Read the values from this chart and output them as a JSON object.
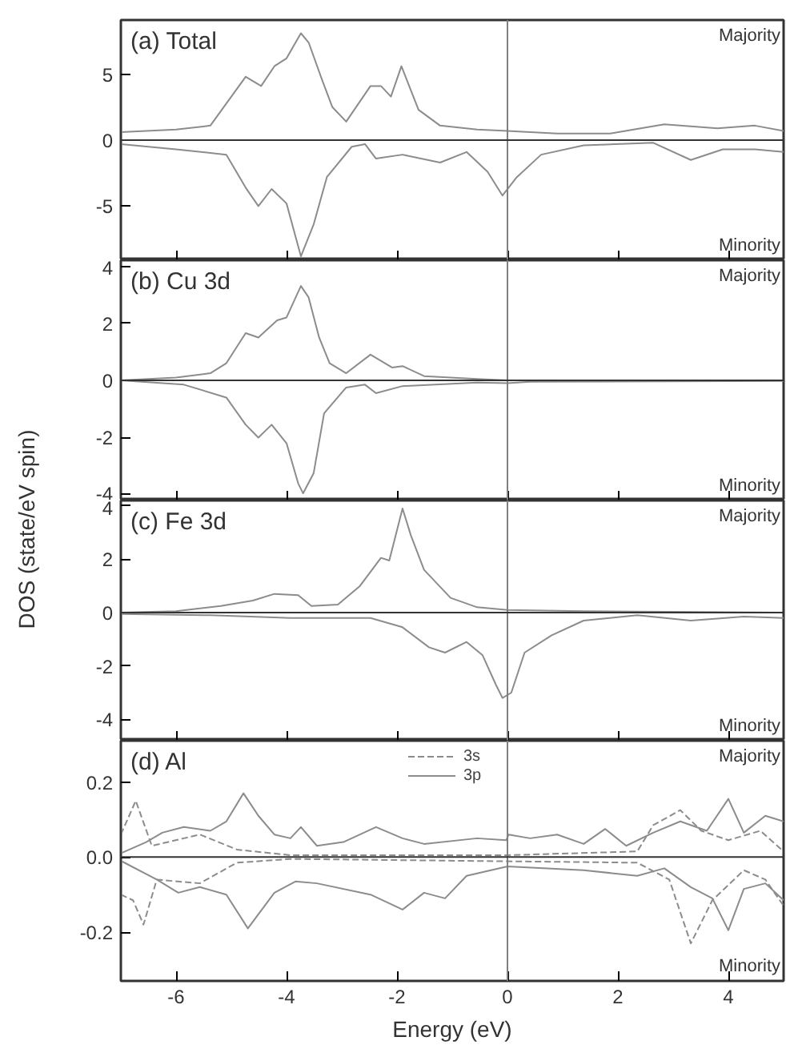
{
  "chart_data": [
    {
      "type": "line",
      "title": "(a) Total",
      "tick_labels": "y",
      "xlim": [
        -7,
        5
      ],
      "xticks": [
        -6,
        -4,
        -2,
        0,
        2,
        4
      ],
      "ylim": [
        -9.1,
        9.1
      ],
      "yticks": [
        -5,
        0,
        5
      ],
      "grid": false,
      "marker": "none",
      "line_style": "solid",
      "ref_lines": [
        {
          "axis": "x",
          "value": 0,
          "color": "#7f7f7f"
        },
        {
          "axis": "y",
          "value": 0,
          "color": "#333333"
        }
      ],
      "annotations": [
        "Majority",
        "Minority"
      ],
      "series": [
        {
          "color": "#8c8c8c",
          "x": [
            -7.0,
            -6.0,
            -5.38,
            -5.0,
            -4.74,
            -4.46,
            -4.22,
            -4.0,
            -3.74,
            -3.6,
            -3.36,
            -3.17,
            -2.92,
            -2.48,
            -2.29,
            -2.11,
            -1.92,
            -1.61,
            -1.22,
            -0.55,
            0,
            0.9,
            1.86,
            2.84,
            3.8,
            4.48,
            5.0
          ],
          "values": [
            0.6,
            0.8,
            1.1,
            3.3,
            4.8,
            4.1,
            5.6,
            6.2,
            8.1,
            7.4,
            4.6,
            2.5,
            1.4,
            4.1,
            4.1,
            3.3,
            5.6,
            2.3,
            1.1,
            0.8,
            0.7,
            0.5,
            0.5,
            1.2,
            0.9,
            1.1,
            0.7
          ]
        },
        {
          "color": "#8c8c8c",
          "x": [
            -7.0,
            -6.0,
            -5.09,
            -4.74,
            -4.51,
            -4.27,
            -4.0,
            -3.74,
            -3.51,
            -3.27,
            -2.82,
            -2.58,
            -2.38,
            -1.9,
            -1.22,
            -0.74,
            -0.36,
            -0.09,
            0.17,
            0.61,
            1.38,
            2.64,
            3.32,
            3.9,
            4.48,
            5.0
          ],
          "values": [
            -0.3,
            -0.7,
            -1.1,
            -3.6,
            -5.0,
            -3.7,
            -4.8,
            -8.8,
            -6.4,
            -2.8,
            -0.5,
            -0.3,
            -1.4,
            -1.1,
            -1.7,
            -0.9,
            -2.4,
            -4.2,
            -2.8,
            -1.1,
            -0.4,
            -0.2,
            -1.5,
            -0.7,
            -0.7,
            -0.9
          ]
        }
      ]
    },
    {
      "type": "line",
      "title": "(b) Cu 3d",
      "ylabel": "DOS (state/eV spin)",
      "tick_labels": "y",
      "xlim": [
        -7,
        5
      ],
      "xticks": [
        -6,
        -4,
        -2,
        0,
        2,
        4
      ],
      "ylim": [
        -4.2,
        4.2
      ],
      "yticks": [
        -4,
        -2,
        0,
        2,
        4
      ],
      "grid": false,
      "marker": "none",
      "line_style": "solid",
      "ref_lines": [
        {
          "axis": "x",
          "value": 0,
          "color": "#7f7f7f"
        },
        {
          "axis": "y",
          "value": 0,
          "color": "#333333"
        }
      ],
      "annotations": [
        "Majority",
        "Minority"
      ],
      "series": [
        {
          "color": "#8c8c8c",
          "x": [
            -7.0,
            -6.0,
            -5.38,
            -5.09,
            -4.74,
            -4.51,
            -4.17,
            -4.0,
            -3.74,
            -3.6,
            -3.41,
            -3.22,
            -2.92,
            -2.48,
            -2.09,
            -1.9,
            -1.51,
            -0.55,
            0,
            5.0
          ],
          "values": [
            0,
            0.1,
            0.25,
            0.6,
            1.65,
            1.5,
            2.1,
            2.2,
            3.3,
            2.9,
            1.5,
            0.6,
            0.25,
            0.9,
            0.45,
            0.5,
            0.15,
            0.05,
            0,
            0
          ]
        },
        {
          "color": "#8c8c8c",
          "x": [
            -7.0,
            -5.86,
            -5.09,
            -4.74,
            -4.51,
            -4.27,
            -4.0,
            -3.79,
            -3.7,
            -3.51,
            -3.32,
            -2.92,
            -2.58,
            -2.38,
            -1.9,
            -0.55,
            0,
            0.41,
            5.0
          ],
          "values": [
            0,
            -0.15,
            -0.6,
            -1.55,
            -2.0,
            -1.55,
            -2.2,
            -3.6,
            -3.95,
            -3.25,
            -1.15,
            -0.25,
            -0.15,
            -0.45,
            -0.2,
            -0.08,
            -0.1,
            -0.05,
            -0.02
          ]
        }
      ]
    },
    {
      "type": "line",
      "title": "(c) Fe 3d",
      "tick_labels": "y",
      "xlim": [
        -7,
        5
      ],
      "xticks": [
        -6,
        -4,
        -2,
        0,
        2,
        4
      ],
      "ylim": [
        -4.8,
        4.2
      ],
      "yticks": [
        -4,
        -2,
        0,
        2,
        4
      ],
      "grid": false,
      "marker": "none",
      "line_style": "solid",
      "ref_lines": [
        {
          "axis": "x",
          "value": 0,
          "color": "#7f7f7f"
        },
        {
          "axis": "y",
          "value": 0,
          "color": "#333333"
        }
      ],
      "annotations": [
        "Majority",
        "Minority"
      ],
      "series": [
        {
          "color": "#8c8c8c",
          "x": [
            -7.0,
            -6.0,
            -5.19,
            -4.61,
            -4.22,
            -3.79,
            -3.55,
            -3.07,
            -2.67,
            -2.29,
            -2.14,
            -1.9,
            -1.75,
            -1.51,
            -1.03,
            -0.55,
            0,
            1.38,
            5.0
          ],
          "values": [
            0,
            0.05,
            0.25,
            0.45,
            0.7,
            0.65,
            0.25,
            0.3,
            1.0,
            2.05,
            1.95,
            3.9,
            2.9,
            1.6,
            0.55,
            0.2,
            0.1,
            0.05,
            0
          ]
        },
        {
          "color": "#8c8c8c",
          "x": [
            -7.0,
            -5.38,
            -3.93,
            -2.48,
            -1.9,
            -1.42,
            -1.13,
            -0.74,
            -0.45,
            -0.21,
            -0.09,
            0.07,
            0.31,
            0.8,
            1.38,
            2.35,
            3.32,
            4.28,
            5.0
          ],
          "values": [
            -0.05,
            -0.1,
            -0.2,
            -0.2,
            -0.55,
            -1.3,
            -1.5,
            -1.1,
            -1.6,
            -2.7,
            -3.2,
            -3.0,
            -1.5,
            -0.85,
            -0.3,
            -0.1,
            -0.3,
            -0.15,
            -0.2
          ]
        }
      ]
    },
    {
      "type": "line",
      "title": "(d) Al",
      "xlabel": "Energy (eV)",
      "xlim": [
        -7,
        5
      ],
      "xticks": [
        -6,
        -4,
        -2,
        0,
        2,
        4
      ],
      "ylim": [
        -0.33,
        0.31
      ],
      "yticks": [
        -0.2,
        {
          "value": 0,
          "label": "0.0"
        },
        0.2
      ],
      "grid": false,
      "marker": "none",
      "legend": "top",
      "ref_lines": [
        {
          "axis": "x",
          "value": 0,
          "color": "#7f7f7f"
        },
        {
          "axis": "y",
          "value": 0,
          "color": "#333333"
        }
      ],
      "annotations": [
        "Majority",
        "Minority"
      ],
      "series": [
        {
          "name": "3s",
          "line_style": "dashed",
          "color": "#8c8c8c",
          "x": [
            -7.0,
            -6.73,
            -6.44,
            -5.86,
            -5.57,
            -4.9,
            -3.93,
            0,
            2.35,
            2.64,
            3.13,
            3.51,
            4.0,
            4.58,
            5.0
          ],
          "values": [
            0.06,
            0.15,
            0.03,
            0.05,
            0.06,
            0.02,
            0.005,
            0.005,
            0.015,
            0.085,
            0.125,
            0.07,
            0.045,
            0.07,
            0.015
          ]
        },
        {
          "line_style": "dashed",
          "color": "#8c8c8c",
          "x": [
            -7.0,
            -6.78,
            -6.59,
            -6.35,
            -5.57,
            -4.9,
            -3.93,
            2.35,
            2.93,
            3.32,
            3.71,
            4.28,
            4.67,
            5.0
          ],
          "values": [
            -0.1,
            -0.115,
            -0.18,
            -0.06,
            -0.07,
            -0.015,
            -0.005,
            -0.015,
            -0.06,
            -0.23,
            -0.115,
            -0.035,
            -0.06,
            -0.13
          ]
        },
        {
          "name": "3p",
          "line_style": "solid",
          "color": "#8c8c8c",
          "x": [
            -7.0,
            -6.54,
            -6.25,
            -5.86,
            -5.38,
            -5.09,
            -4.78,
            -4.51,
            -4.22,
            -3.93,
            -3.74,
            -3.45,
            -2.97,
            -2.38,
            -1.9,
            -1.51,
            -0.55,
            -0.02,
            0.02,
            0.41,
            0.9,
            1.38,
            1.77,
            2.15,
            2.64,
            3.13,
            3.61,
            4.0,
            4.28,
            4.67,
            5.0
          ],
          "values": [
            0.01,
            0.04,
            0.065,
            0.08,
            0.07,
            0.095,
            0.17,
            0.11,
            0.06,
            0.05,
            0.08,
            0.03,
            0.04,
            0.08,
            0.05,
            0.035,
            0.05,
            0.045,
            0.06,
            0.05,
            0.06,
            0.035,
            0.075,
            0.03,
            0.065,
            0.095,
            0.07,
            0.155,
            0.065,
            0.11,
            0.095
          ]
        },
        {
          "line_style": "solid",
          "color": "#8c8c8c",
          "x": [
            -7.0,
            -6.35,
            -5.96,
            -5.57,
            -5.09,
            -4.7,
            -4.22,
            -3.84,
            -3.45,
            -2.48,
            -1.9,
            -1.51,
            -1.13,
            -0.74,
            0,
            1.38,
            2.35,
            2.84,
            3.32,
            3.71,
            4.0,
            4.28,
            4.67,
            5.0
          ],
          "values": [
            -0.01,
            -0.06,
            -0.095,
            -0.08,
            -0.1,
            -0.19,
            -0.095,
            -0.065,
            -0.07,
            -0.1,
            -0.14,
            -0.095,
            -0.11,
            -0.05,
            -0.025,
            -0.035,
            -0.05,
            -0.03,
            -0.08,
            -0.11,
            -0.195,
            -0.085,
            -0.07,
            -0.115
          ]
        }
      ]
    }
  ]
}
